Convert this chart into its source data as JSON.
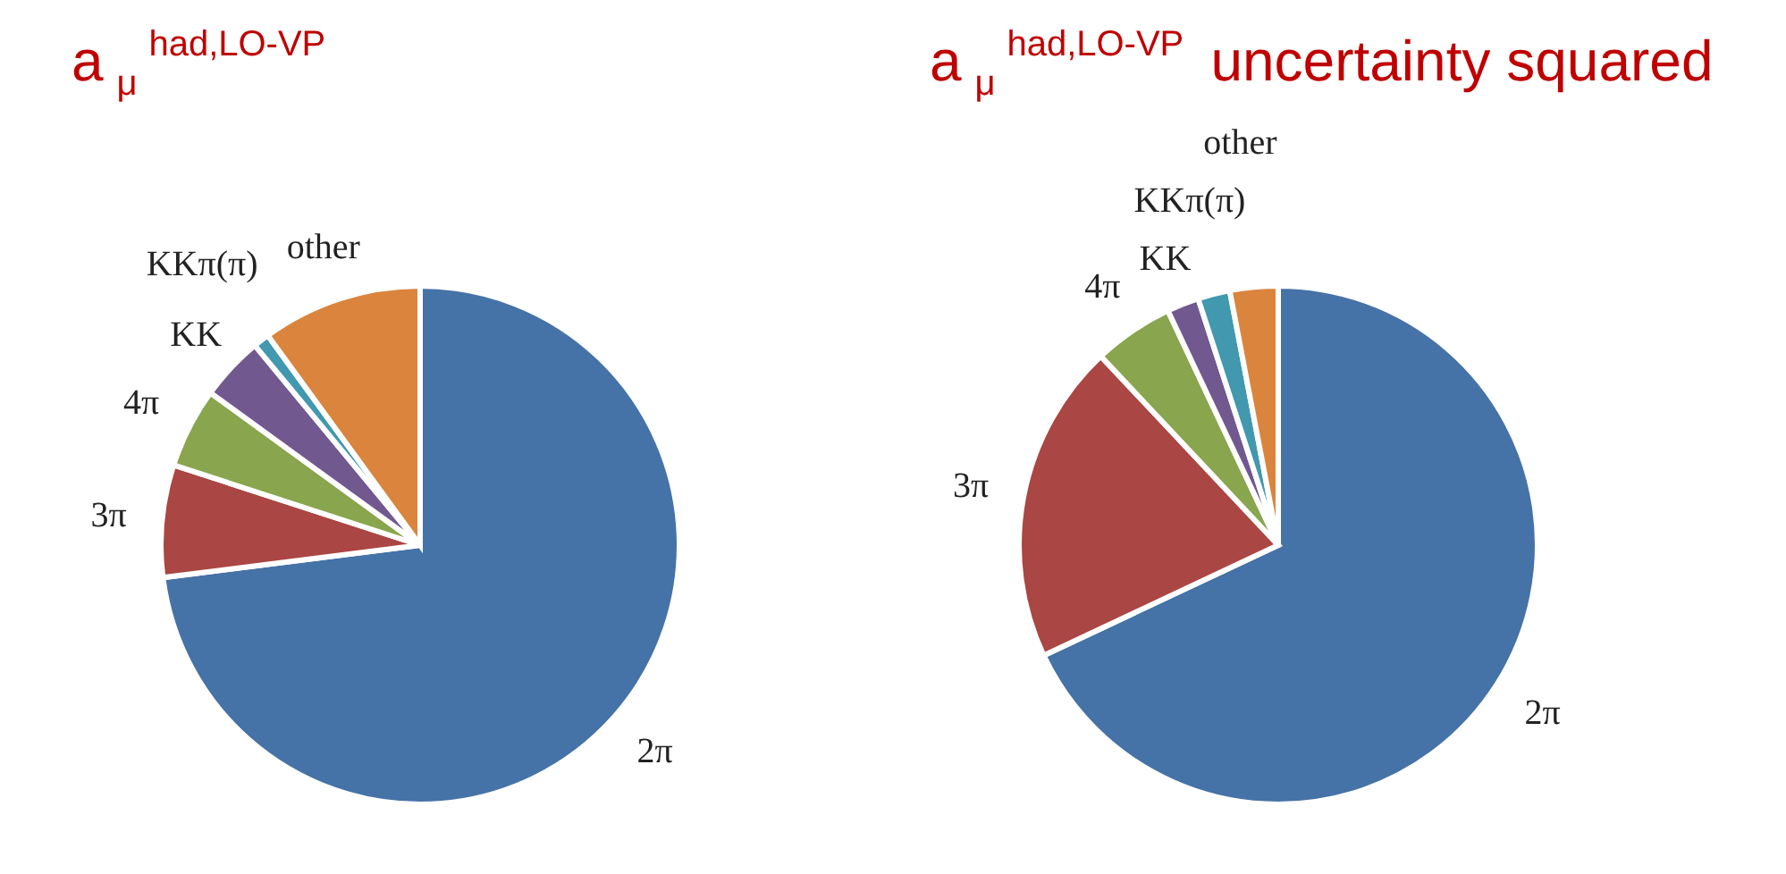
{
  "chart_data": [
    {
      "type": "pie",
      "title": "a$_{μ}$$^{had,LO-VP}$",
      "categories": [
        "2π",
        "3π",
        "4π",
        "KK",
        "KKπ(π)",
        "other"
      ],
      "values": [
        73,
        7,
        5,
        4,
        1,
        10
      ],
      "colors": [
        "#4572a7",
        "#aa4643",
        "#89a54e",
        "#71588f",
        "#4198af",
        "#db843d"
      ],
      "legend": false
    },
    {
      "type": "pie",
      "title": "a$_{μ}$$^{had,LO-VP}$ uncertainty squared",
      "categories": [
        "2π",
        "3π",
        "4π",
        "KK",
        "KKπ(π)",
        "other"
      ],
      "values": [
        68,
        20,
        5,
        2,
        2,
        3
      ],
      "colors": [
        "#4572a7",
        "#aa4643",
        "#89a54e",
        "#71588f",
        "#4198af",
        "#db843d"
      ],
      "legend": false
    }
  ]
}
